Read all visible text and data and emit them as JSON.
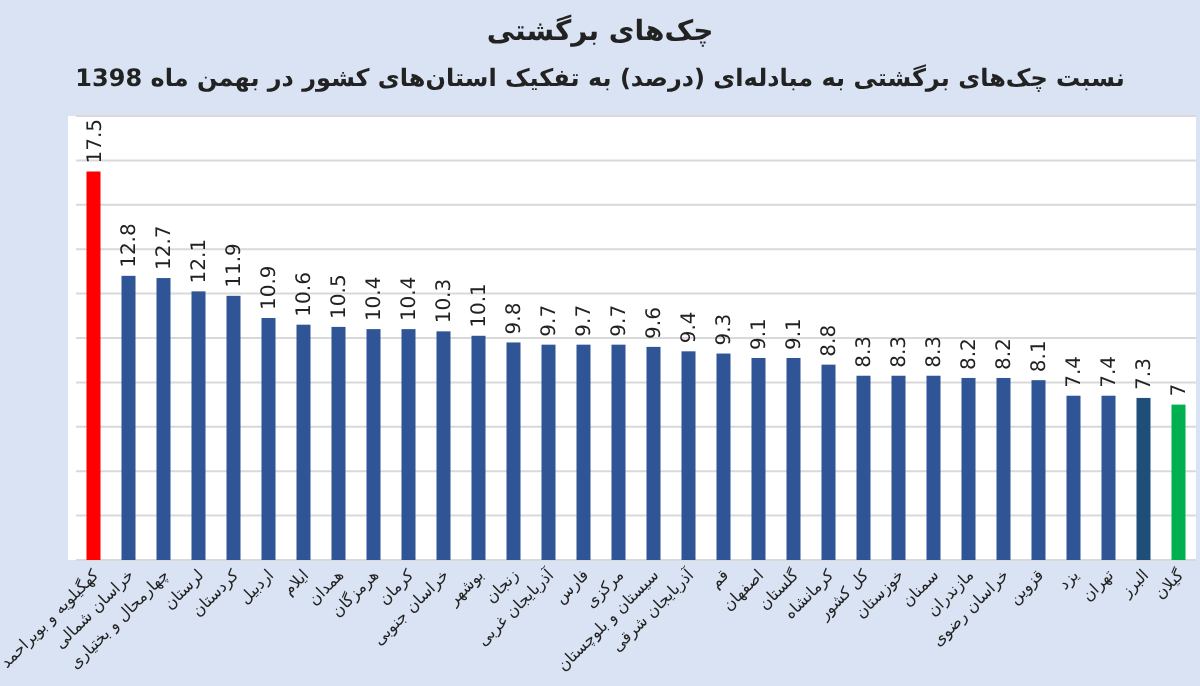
{
  "chart_data": {
    "type": "bar",
    "title": "چک‌های برگشتی",
    "subtitle": "نسبت چک‌های برگشتی به مبادله‌ای (درصد) به تفکیک استان‌های کشور در بهمن ماه 1398",
    "categories": [
      "کهگیلویه و بویراحمد",
      "خراسان شمالی",
      "چهارمحال و بختیاری",
      "لرستان",
      "کردستان",
      "اردبیل",
      "ایلام",
      "همدان",
      "هرمزگان",
      "کرمان",
      "خراسان جنوبی",
      "بوشهر",
      "زنجان",
      "آذربایجان غربی",
      "فارس",
      "مرکزی",
      "سیستان و بلوچستان",
      "آذربایجان شرقی",
      "قم",
      "اصفهان",
      "گلستان",
      "کرمانشاه",
      "کل کشور",
      "خوزستان",
      "سمنان",
      "مازندران",
      "خراسان رضوی",
      "قزوین",
      "یزد",
      "تهران",
      "البرز",
      "گیلان"
    ],
    "values": [
      17.5,
      12.8,
      12.7,
      12.1,
      11.9,
      10.9,
      10.6,
      10.5,
      10.4,
      10.4,
      10.3,
      10.1,
      9.8,
      9.7,
      9.7,
      9.7,
      9.6,
      9.4,
      9.3,
      9.1,
      9.1,
      8.8,
      8.3,
      8.3,
      8.3,
      8.2,
      8.2,
      8.1,
      7.4,
      7.4,
      7.3,
      7
    ],
    "colors": [
      "#ff0000",
      "#2f5597",
      "#2f5597",
      "#2f5597",
      "#2f5597",
      "#2f5597",
      "#2f5597",
      "#2f5597",
      "#2f5597",
      "#2f5597",
      "#2f5597",
      "#2f5597",
      "#2f5597",
      "#2f5597",
      "#2f5597",
      "#2f5597",
      "#2f5597",
      "#2f5597",
      "#2f5597",
      "#2f5597",
      "#2f5597",
      "#2f5597",
      "#2f5597",
      "#2f5597",
      "#2f5597",
      "#2f5597",
      "#2f5597",
      "#2f5597",
      "#2f5597",
      "#2f5597",
      "#1f4e79",
      "#00b050"
    ],
    "ylim": [
      0,
      20
    ],
    "yticks": [
      {
        "value": 0,
        "label": null
      },
      {
        "value": 2,
        "label": null
      },
      {
        "value": 4,
        "label": null
      },
      {
        "value": 6,
        "label": null
      },
      {
        "value": 8,
        "label": null
      },
      {
        "value": 10,
        "label": null
      },
      {
        "value": 12,
        "label": null
      },
      {
        "value": 14,
        "label": null
      },
      {
        "value": 16,
        "label": null
      },
      {
        "value": 18,
        "label": null
      },
      {
        "value": 20,
        "label": null
      }
    ],
    "tick_labels": "x",
    "grid": "y",
    "data_labels": true
  }
}
